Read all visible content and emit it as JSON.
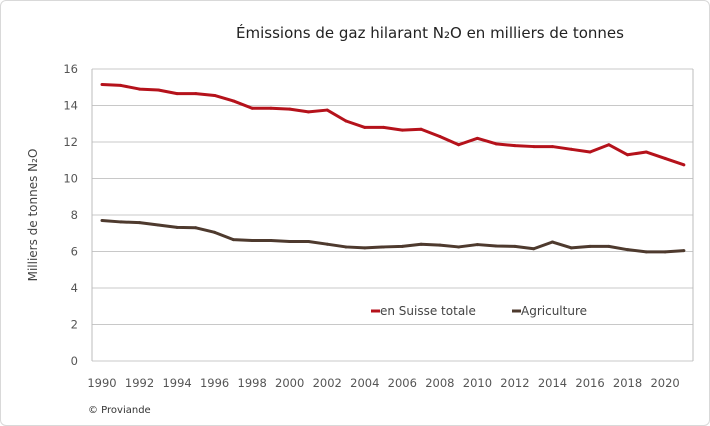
{
  "chart_data": {
    "type": "line",
    "title": "Émissions de gaz hilarant N₂O en milliers de tonnes",
    "xlabel": "",
    "ylabel": "Milliers de tonnes N₂O",
    "x": [
      1990,
      1991,
      1992,
      1993,
      1994,
      1995,
      1996,
      1997,
      1998,
      1999,
      2000,
      2001,
      2002,
      2003,
      2004,
      2005,
      2006,
      2007,
      2008,
      2009,
      2010,
      2011,
      2012,
      2013,
      2014,
      2015,
      2016,
      2017,
      2018,
      2019,
      2020,
      2021
    ],
    "xticks": [
      "1990",
      "1992",
      "1994",
      "1996",
      "1998",
      "2000",
      "2002",
      "2004",
      "2006",
      "2008",
      "2010",
      "2012",
      "2014",
      "2016",
      "2018",
      "2020"
    ],
    "yticks": [
      "0",
      "2",
      "4",
      "6",
      "8",
      "10",
      "12",
      "14",
      "16"
    ],
    "ylim": [
      0,
      16
    ],
    "grid": "horizontal",
    "legend_position": "inside-bottom-center",
    "series": [
      {
        "name": "en Suisse totale",
        "color": "#b5121b",
        "values": [
          15.15,
          15.1,
          14.9,
          14.85,
          14.65,
          14.65,
          14.55,
          14.25,
          13.85,
          13.85,
          13.8,
          13.65,
          13.75,
          13.15,
          12.8,
          12.8,
          12.65,
          12.7,
          12.3,
          11.85,
          12.2,
          11.9,
          11.8,
          11.75,
          11.75,
          11.6,
          11.45,
          11.85,
          11.3,
          11.45,
          11.1,
          10.75
        ]
      },
      {
        "name": "Agriculture",
        "color": "#4e3a2e",
        "values": [
          7.7,
          7.62,
          7.58,
          7.45,
          7.32,
          7.3,
          7.05,
          6.65,
          6.6,
          6.6,
          6.55,
          6.55,
          6.4,
          6.25,
          6.2,
          6.25,
          6.28,
          6.4,
          6.35,
          6.25,
          6.38,
          6.3,
          6.28,
          6.15,
          6.52,
          6.2,
          6.28,
          6.28,
          6.1,
          5.98,
          5.98,
          6.05
        ]
      }
    ]
  },
  "credit": "© Proviande"
}
